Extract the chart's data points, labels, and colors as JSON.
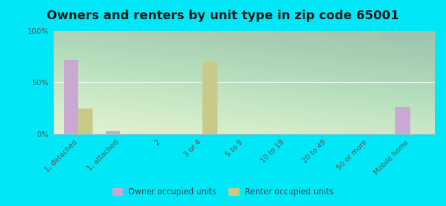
{
  "title": "Owners and renters by unit type in zip code 65001",
  "categories": [
    "1, detached",
    "1, attached",
    "2",
    "3 or 4",
    "5 to 9",
    "10 to 19",
    "20 to 49",
    "50 or more",
    "Mobile home"
  ],
  "owner_values": [
    72,
    3,
    0,
    0,
    0,
    0,
    0,
    0,
    26
  ],
  "renter_values": [
    25,
    0,
    0,
    70,
    0,
    0,
    0,
    0,
    0
  ],
  "owner_color": "#c9a8d4",
  "renter_color": "#c8cb88",
  "background_outer": "#00e8f8",
  "yticks": [
    0,
    50,
    100
  ],
  "ylim": [
    0,
    100
  ],
  "legend_owner": "Owner occupied units",
  "legend_renter": "Renter occupied units",
  "watermark": "City-Data.com",
  "title_fontsize": 13,
  "bar_width": 0.35,
  "plot_bg_color": "#e8f5e0"
}
